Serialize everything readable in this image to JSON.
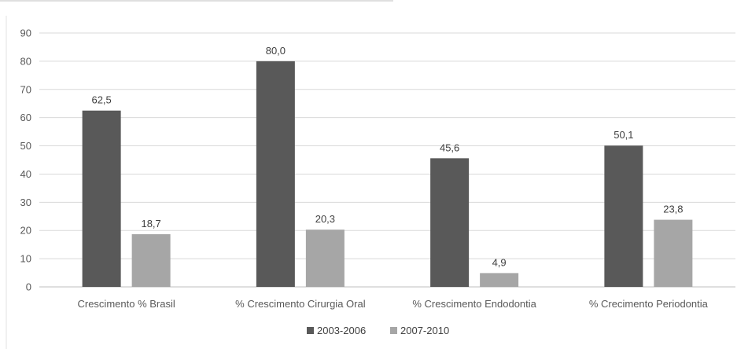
{
  "chart_data": {
    "type": "bar",
    "categories": [
      "Crescimento % Brasil",
      "% Crescimento  Cirurgia Oral",
      "% Crescimento Endodontia",
      "% Crecimento Periodontia"
    ],
    "series": [
      {
        "name": "2003-2006",
        "values": [
          62.5,
          80.0,
          45.6,
          50.1
        ],
        "labels": [
          "62,5",
          "80,0",
          "45,6",
          "50,1"
        ],
        "color": "#595959"
      },
      {
        "name": "2007-2010",
        "values": [
          18.7,
          20.3,
          4.9,
          23.8
        ],
        "labels": [
          "18,7",
          "20,3",
          "4,9",
          "23,8"
        ],
        "color": "#a6a6a6"
      }
    ],
    "yticks": [
      "0",
      "10",
      "20",
      "30",
      "40",
      "50",
      "60",
      "70",
      "80",
      "90"
    ],
    "ylim": [
      0,
      90
    ],
    "grid": true,
    "legend_position": "bottom"
  }
}
